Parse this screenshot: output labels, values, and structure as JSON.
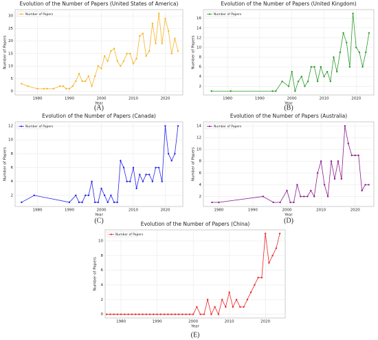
{
  "chart_data": [
    {
      "type": "line",
      "label": "(A)",
      "title": "Evolution of the Number of Papers (United States of America)",
      "xlabel": "Year",
      "ylabel": "Number of Papers",
      "x": [
        1975,
        1977,
        1980,
        1982,
        1983,
        1985,
        1987,
        1988,
        1989,
        1990,
        1991,
        1992,
        1993,
        1994,
        1995,
        1996,
        1997,
        1998,
        1999,
        2000,
        2001,
        2002,
        2003,
        2004,
        2005,
        2006,
        2007,
        2008,
        2009,
        2010,
        2011,
        2012,
        2013,
        2014,
        2015,
        2016,
        2017,
        2018,
        2019,
        2020,
        2021,
        2022,
        2023,
        2024
      ],
      "series": [
        {
          "name": "Number of Papers",
          "color": "#f5b324",
          "values": [
            3,
            2,
            1,
            1,
            1,
            1,
            2,
            2,
            1,
            1,
            2,
            4,
            7,
            4,
            4,
            6,
            2,
            6,
            10,
            9,
            14,
            12,
            16,
            17,
            12,
            10,
            12,
            15,
            15,
            11,
            13,
            22,
            23,
            14,
            16,
            27,
            19,
            31,
            19,
            29,
            24,
            15,
            21,
            16
          ]
        }
      ],
      "xlim": [
        1973,
        2025.5
      ],
      "ylim": [
        -1.5,
        32.5
      ],
      "xticks": [
        1980,
        1990,
        2000,
        2010,
        2020
      ],
      "yticks": [
        0,
        5,
        10,
        15,
        20,
        25,
        30
      ],
      "grid": true,
      "legend": "upper left"
    },
    {
      "type": "line",
      "label": "(B)",
      "title": "Evolution of the Number of Papers (United Kingdom)",
      "xlabel": "Year",
      "ylabel": "Number of Papers",
      "x": [
        1975,
        1981,
        1994,
        1995,
        1997,
        1999,
        2000,
        2001,
        2002,
        2003,
        2004,
        2005,
        2006,
        2007,
        2008,
        2009,
        2010,
        2011,
        2012,
        2013,
        2014,
        2015,
        2016,
        2017,
        2018,
        2019,
        2020,
        2021,
        2022,
        2023,
        2024
      ],
      "series": [
        {
          "name": "Number of Papers",
          "color": "#2a9a2a",
          "values": [
            1,
            1,
            1,
            1,
            3,
            2,
            5,
            1,
            3,
            4,
            2,
            3,
            6,
            6,
            3,
            6,
            4,
            5,
            3,
            8,
            5,
            9,
            13,
            11,
            6,
            17,
            10,
            9,
            6,
            9,
            13
          ]
        }
      ],
      "xlim": [
        1972.5,
        2025.5
      ],
      "ylim": [
        0.2,
        17.8
      ],
      "xticks": [
        1980,
        1990,
        2000,
        2010,
        2020
      ],
      "yticks": [
        2,
        4,
        6,
        8,
        10,
        12,
        14,
        16
      ],
      "grid": true,
      "legend": "upper left"
    },
    {
      "type": "line",
      "label": "(C)",
      "title": "Evolution of the Number of Papers (Canada)",
      "xlabel": "Year",
      "ylabel": "Number of Papers",
      "x": [
        1975,
        1979,
        1990,
        1992,
        1993,
        1994,
        1995,
        1996,
        1997,
        1998,
        1999,
        2000,
        2001,
        2002,
        2003,
        2004,
        2005,
        2006,
        2007,
        2008,
        2009,
        2010,
        2011,
        2012,
        2013,
        2014,
        2015,
        2016,
        2017,
        2018,
        2019,
        2020,
        2021,
        2022,
        2023,
        2024
      ],
      "series": [
        {
          "name": "Number of Papers",
          "color": "#2222ee",
          "values": [
            1,
            2,
            1,
            2,
            1,
            1,
            2,
            2,
            4,
            1,
            1,
            3,
            2,
            1,
            2,
            1,
            1,
            7,
            6,
            4,
            4,
            6,
            3,
            5,
            4,
            5,
            5,
            4,
            6,
            6,
            4,
            12,
            8,
            7,
            8,
            12
          ]
        }
      ],
      "xlim": [
        1973,
        2025.5
      ],
      "ylim": [
        0.4,
        12.6
      ],
      "xticks": [
        1980,
        1990,
        2000,
        2010,
        2020
      ],
      "yticks": [
        2,
        4,
        6,
        8,
        10,
        12
      ],
      "grid": true,
      "legend": "upper left"
    },
    {
      "type": "line",
      "label": "(D)",
      "title": "Evolution of the Number of Papers (Australia)",
      "xlabel": "Year",
      "ylabel": "Number of Papers",
      "x": [
        1978,
        1980,
        1993,
        1996,
        1998,
        2000,
        2001,
        2002,
        2003,
        2004,
        2005,
        2006,
        2007,
        2008,
        2009,
        2010,
        2011,
        2012,
        2013,
        2014,
        2015,
        2016,
        2017,
        2018,
        2019,
        2020,
        2021,
        2022,
        2023,
        2024
      ],
      "series": [
        {
          "name": "Number of Papers",
          "color": "#8b1a8b",
          "values": [
            1,
            1,
            2,
            1,
            1,
            3,
            1,
            1,
            4,
            2,
            2,
            2,
            3,
            2,
            6,
            8,
            4,
            2,
            8,
            5,
            8,
            5,
            14,
            11,
            9,
            9,
            9,
            3,
            4,
            4
          ]
        }
      ],
      "xlim": [
        1975.5,
        2025.5
      ],
      "ylim": [
        0.3,
        14.7
      ],
      "xticks": [
        1980,
        1990,
        2000,
        2010,
        2020
      ],
      "yticks": [
        2,
        4,
        6,
        8,
        10,
        12,
        14
      ],
      "grid": true,
      "legend": "upper left"
    },
    {
      "type": "line",
      "label": "(E)",
      "title": "Evolution of the Number of Papers (China)",
      "xlabel": "Year",
      "ylabel": "Number of Papers",
      "x": [
        1976,
        1977,
        1978,
        1979,
        1980,
        1981,
        1982,
        1983,
        1984,
        1985,
        1986,
        1987,
        1988,
        1989,
        1990,
        1991,
        1992,
        1993,
        1994,
        1995,
        1996,
        1997,
        1998,
        1999,
        2000,
        2001,
        2002,
        2003,
        2004,
        2005,
        2006,
        2007,
        2008,
        2009,
        2010,
        2011,
        2012,
        2013,
        2014,
        2015,
        2016,
        2017,
        2018,
        2019,
        2020,
        2021,
        2022,
        2023,
        2024
      ],
      "series": [
        {
          "name": "Number of Papers",
          "color": "#ee2222",
          "values": [
            0,
            0,
            0,
            0,
            0,
            0,
            0,
            0,
            0,
            0,
            0,
            0,
            0,
            0,
            0,
            0,
            0,
            0,
            0,
            0,
            0,
            0,
            0,
            0,
            0,
            1,
            0,
            0,
            2,
            0,
            1,
            0,
            2,
            1,
            3,
            1,
            2,
            1,
            1,
            2,
            3,
            4,
            5,
            5,
            11,
            7,
            8,
            9,
            11
          ]
        }
      ],
      "xlim": [
        1975.6,
        2025.5
      ],
      "ylim": [
        -0.5,
        11.5
      ],
      "xticks": [
        1980,
        1990,
        2000,
        2010,
        2020
      ],
      "yticks": [
        0,
        2,
        4,
        6,
        8,
        10
      ],
      "grid": true,
      "legend": "upper left"
    }
  ]
}
